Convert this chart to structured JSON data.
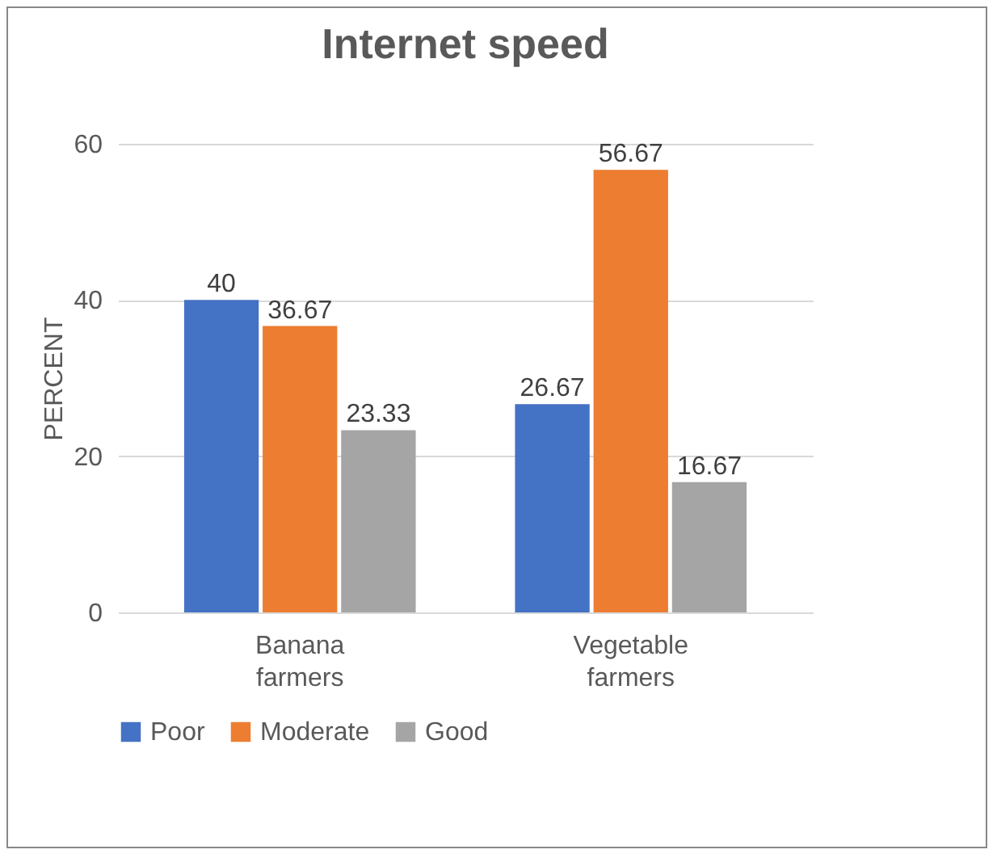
{
  "chart_data": {
    "type": "bar",
    "title": "Internet speed",
    "ylabel": "PERCENT",
    "categories": [
      "Banana farmers",
      "Vegetable farmers"
    ],
    "series": [
      {
        "name": "Poor",
        "color": "#4472c4",
        "values": [
          40,
          26.67
        ]
      },
      {
        "name": "Moderate",
        "color": "#ed7d31",
        "values": [
          36.67,
          56.67
        ]
      },
      {
        "name": "Good",
        "color": "#a5a5a5",
        "values": [
          23.33,
          16.67
        ]
      }
    ],
    "ylim": [
      0,
      60
    ],
    "yticks": [
      0,
      20,
      40,
      60
    ],
    "grid": "y",
    "legend": "bottom",
    "data_labels": true
  }
}
